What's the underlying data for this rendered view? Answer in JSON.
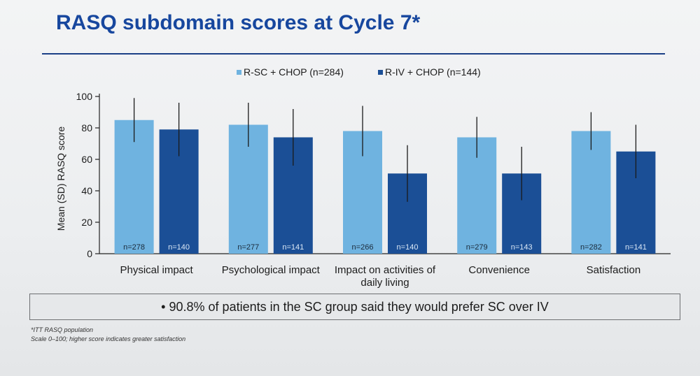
{
  "title": "RASQ subdomain scores at Cycle 7*",
  "callout": {
    "bullet": "•",
    "text": "90.8% of patients in the SC group said they would prefer SC over IV"
  },
  "footnotes": [
    "*ITT RASQ population",
    "Scale 0–100; higher score indicates greater satisfaction"
  ],
  "colors": {
    "title": "#17479e",
    "series_sc": "#6fb3e0",
    "series_iv": "#1b4f96"
  },
  "chart_data": {
    "type": "bar",
    "title": "",
    "ylabel": "Mean (SD) RASQ score",
    "xlabel": "",
    "ylim": [
      0,
      100
    ],
    "yticks": [
      0,
      20,
      40,
      60,
      80,
      100
    ],
    "legend_position": "top",
    "categories": [
      [
        "Physical impact"
      ],
      [
        "Psychological impact"
      ],
      [
        "Impact on activities of",
        "daily living"
      ],
      [
        "Convenience"
      ],
      [
        "Satisfaction"
      ]
    ],
    "series": [
      {
        "name": "R-SC + CHOP (n=284)",
        "color": "#6fb3e0",
        "values": [
          85,
          82,
          78,
          74,
          78
        ],
        "sd": [
          14,
          14,
          16,
          13,
          12
        ],
        "n_labels": [
          "n=278",
          "n=277",
          "n=266",
          "n=279",
          "n=282"
        ]
      },
      {
        "name": "R-IV + CHOP (n=144)",
        "color": "#1b4f96",
        "values": [
          79,
          74,
          51,
          51,
          65
        ],
        "sd": [
          17,
          18,
          18,
          17,
          17
        ],
        "n_labels": [
          "n=140",
          "n=141",
          "n=140",
          "n=143",
          "n=141"
        ]
      }
    ]
  }
}
